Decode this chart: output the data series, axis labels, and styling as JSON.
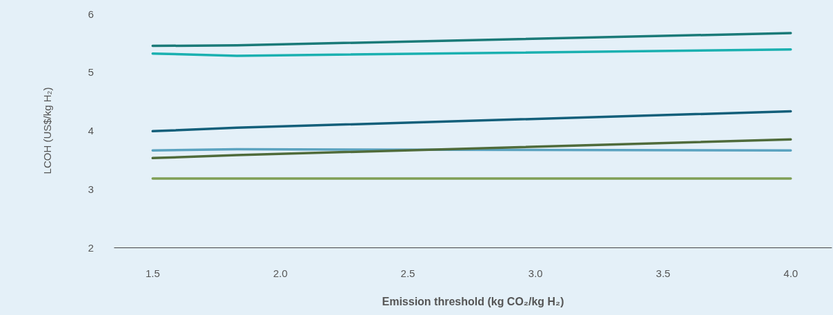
{
  "chart_data": {
    "type": "line",
    "xlabel": "Emission threshold (kg CO₂/kg H₂)",
    "ylabel": "LCOH (US$/kg H₂)",
    "x": [
      1.5,
      1.83,
      4.0
    ],
    "series": [
      {
        "color": "#1a7a78",
        "values": [
          5.45,
          5.46,
          5.67
        ]
      },
      {
        "color": "#1ab0b0",
        "values": [
          5.32,
          5.28,
          5.39
        ]
      },
      {
        "color": "#135f7a",
        "values": [
          3.99,
          4.05,
          4.33
        ]
      },
      {
        "color": "#5ba3c0",
        "values": [
          3.66,
          3.68,
          3.66
        ]
      },
      {
        "color": "#4f6b3a",
        "values": [
          3.53,
          3.58,
          3.85
        ]
      },
      {
        "color": "#7f9f55",
        "values": [
          3.18,
          3.18,
          3.18
        ]
      }
    ],
    "xlim": [
      1.35,
      4.16
    ],
    "ylim": [
      2,
      6
    ],
    "xticks": [
      {
        "value": 1.5,
        "label": "1.5"
      },
      {
        "value": 2,
        "label": "2.0"
      },
      {
        "value": 2.5,
        "label": "2.5"
      },
      {
        "value": 3,
        "label": "3.0"
      },
      {
        "value": 3.5,
        "label": "3.5"
      },
      {
        "value": 4,
        "label": "4.0"
      }
    ],
    "yticks": [
      2,
      3,
      4,
      5,
      6
    ],
    "grid": false,
    "marker": "none",
    "line_style": "solid"
  }
}
